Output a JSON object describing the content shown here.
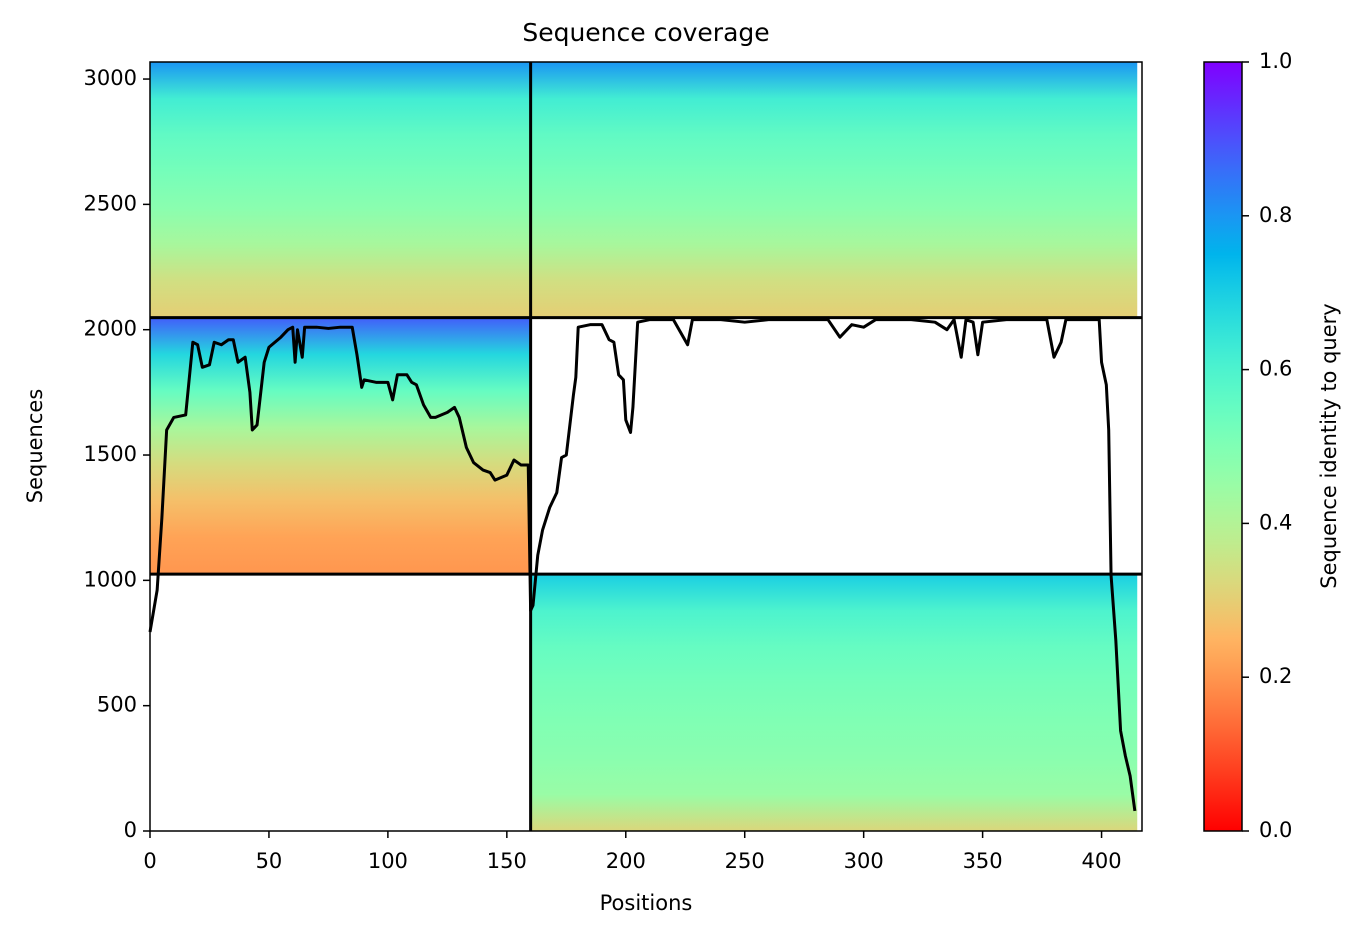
{
  "chart_data": {
    "type": "coverage",
    "title": "Sequence coverage",
    "x_label": "Positions",
    "y_label": "Sequences",
    "colorbar_label": "Sequence identity to query",
    "colormap": "rainbow_r",
    "xlim": [
      0,
      417
    ],
    "ylim": [
      0,
      3068
    ],
    "xticks": [
      0,
      50,
      100,
      150,
      200,
      250,
      300,
      350,
      400
    ],
    "yticks": [
      0,
      500,
      1000,
      1500,
      2000,
      2500,
      3000
    ],
    "clim": [
      0,
      1
    ],
    "cticks": [
      {
        "value": 0,
        "label": "0.0"
      },
      0.2,
      0.4,
      0.6,
      0.8,
      {
        "value": 1,
        "label": "1.0"
      }
    ],
    "blocks": [
      {
        "x0": 160,
        "x1": 415,
        "y0": 0,
        "y1": 1025,
        "identity": [
          0.32,
          0.45,
          0.48,
          0.5,
          0.52,
          0.55,
          0.6,
          0.7
        ]
      },
      {
        "x0": 0,
        "x1": 160,
        "y0": 1025,
        "y1": 2048,
        "identity": [
          0.2,
          0.22,
          0.27,
          0.33,
          0.42,
          0.55,
          0.68,
          0.88
        ]
      },
      {
        "x0": 0,
        "x1": 415,
        "y0": 2048,
        "y1": 3068,
        "identity": [
          0.3,
          0.34,
          0.42,
          0.48,
          0.52,
          0.56,
          0.62,
          0.8
        ]
      }
    ],
    "breaks_x": [
      160
    ],
    "breaks_y": [
      1025,
      2048
    ],
    "line": {
      "color": "#000000",
      "x": [
        0,
        3,
        5,
        7,
        10,
        15,
        18,
        20,
        22,
        25,
        27,
        30,
        33,
        35,
        37,
        40,
        42,
        43,
        45,
        48,
        50,
        55,
        58,
        60,
        61,
        62,
        64,
        65,
        70,
        75,
        80,
        85,
        87,
        89,
        90,
        95,
        100,
        102,
        104,
        108,
        110,
        112,
        115,
        118,
        120,
        125,
        128,
        130,
        133,
        136,
        140,
        143,
        145,
        150,
        153,
        156,
        159,
        160,
        161,
        163,
        165,
        168,
        171,
        173,
        175,
        178,
        179,
        180,
        185,
        190,
        193,
        195,
        197,
        199,
        200,
        202,
        203,
        205,
        210,
        220,
        226,
        228,
        240,
        250,
        260,
        275,
        285,
        290,
        295,
        300,
        305,
        320,
        330,
        335,
        338,
        341,
        343,
        346,
        348,
        350,
        360,
        377,
        380,
        383,
        385,
        399,
        400,
        402,
        403,
        404,
        406,
        408,
        410,
        412,
        414
      ],
      "values": [
        794,
        961,
        1250,
        1600,
        1650,
        1660,
        1950,
        1940,
        1850,
        1860,
        1950,
        1940,
        1960,
        1960,
        1870,
        1890,
        1750,
        1600,
        1620,
        1870,
        1930,
        1970,
        2000,
        2010,
        1870,
        2000,
        1890,
        2010,
        2010,
        2005,
        2010,
        2010,
        1900,
        1770,
        1800,
        1790,
        1790,
        1720,
        1820,
        1820,
        1790,
        1780,
        1700,
        1650,
        1650,
        1670,
        1690,
        1650,
        1530,
        1470,
        1440,
        1430,
        1400,
        1420,
        1480,
        1460,
        1460,
        880,
        900,
        1100,
        1200,
        1290,
        1350,
        1490,
        1500,
        1740,
        1810,
        2010,
        2020,
        2020,
        1960,
        1950,
        1820,
        1800,
        1640,
        1590,
        1690,
        2030,
        2040,
        2040,
        1940,
        2040,
        2040,
        2030,
        2040,
        2040,
        2040,
        1970,
        2020,
        2010,
        2040,
        2040,
        2030,
        2000,
        2040,
        1890,
        2040,
        2030,
        1900,
        2030,
        2040,
        2040,
        1890,
        1950,
        2040,
        2040,
        1870,
        1780,
        1600,
        1020,
        760,
        400,
        300,
        220,
        80
      ]
    }
  }
}
